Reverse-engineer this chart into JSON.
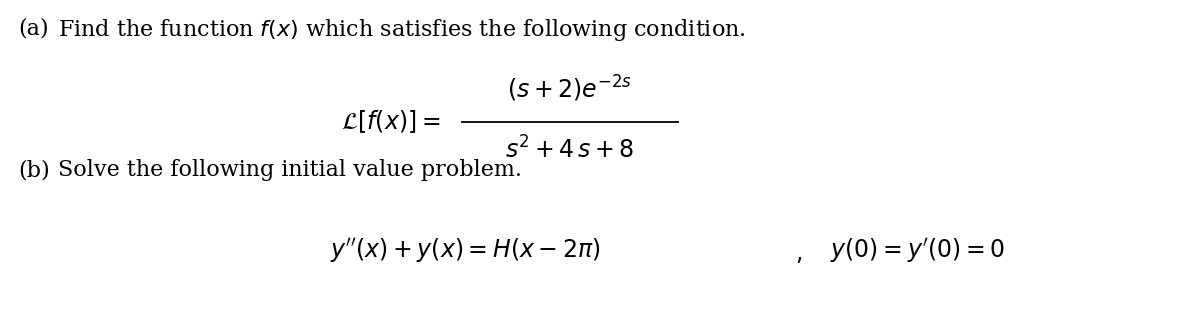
{
  "background_color": "#ffffff",
  "figsize": [
    12.0,
    3.17
  ],
  "dpi": 100,
  "text_color": "#000000",
  "fontsize_main": 16,
  "fontsize_formula": 17,
  "part_a_label": "(a)",
  "part_a_text": "Find the function $f(x)$ which satisfies the following condition.",
  "part_b_label": "(b)",
  "part_b_text": "Solve the following initial value problem.",
  "formula_lhs": "$\\mathcal{L}[f(x)] = $",
  "formula_numerator": "$(s + 2)e^{-2s}$",
  "formula_denominator": "$s^2 + 4\\,s + 8$",
  "ode_lhs": "$y''(x) + y(x) = H(x - 2\\pi)$",
  "ode_rhs": "$y(0) = y'(0) = 0$"
}
